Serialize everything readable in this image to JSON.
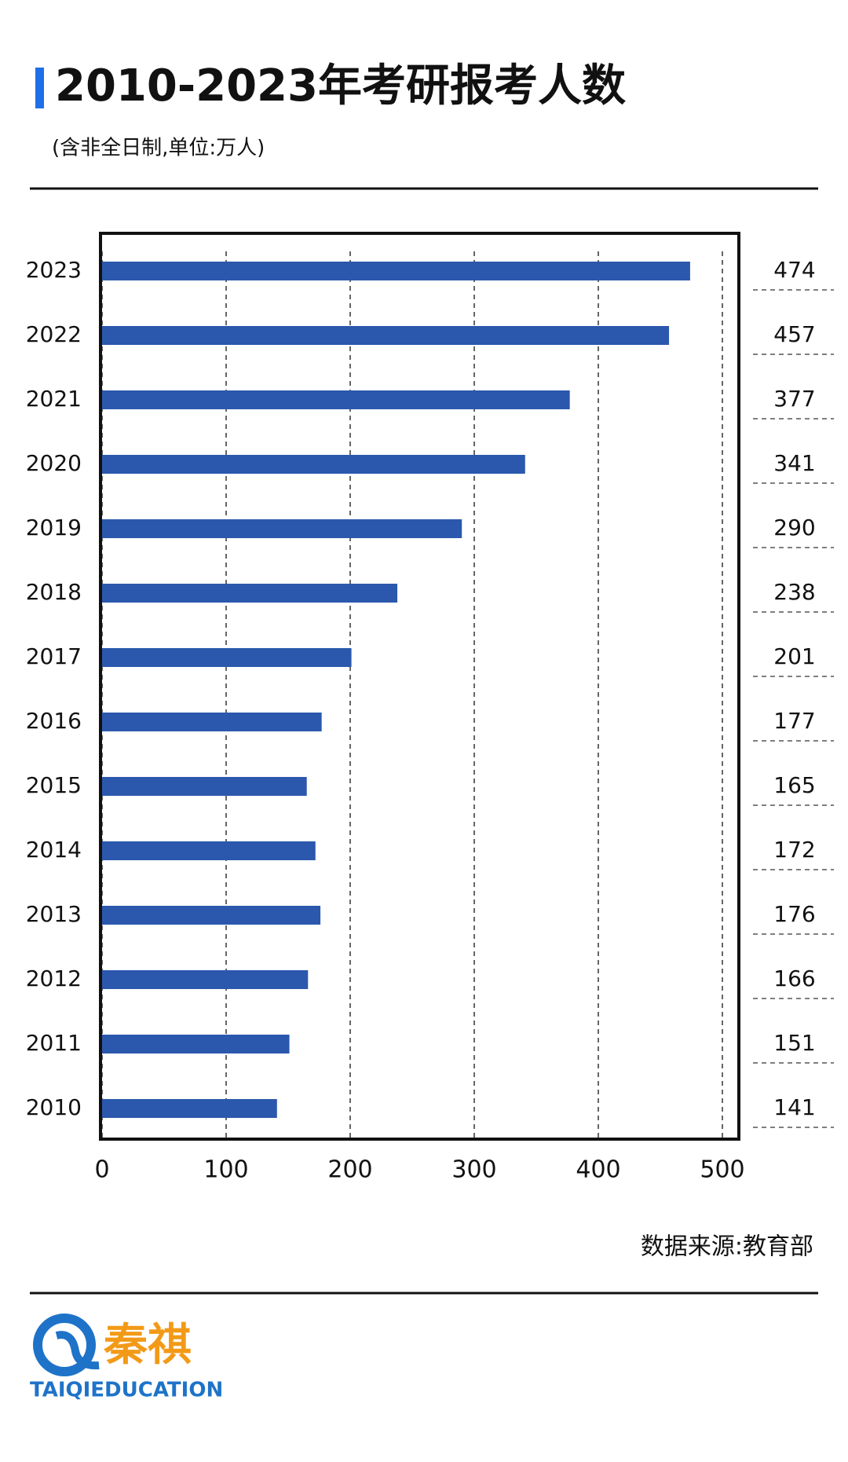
{
  "chart_data": {
    "type": "hbar",
    "title": "2010-2023年考研报考人数",
    "subtitle": "(含非全日制,单位:万人)",
    "source": "数据来源:教育部",
    "categories": [
      "2023",
      "2022",
      "2021",
      "2020",
      "2019",
      "2018",
      "2017",
      "2016",
      "2015",
      "2014",
      "2013",
      "2012",
      "2011",
      "2010"
    ],
    "values": [
      474,
      457,
      377,
      341,
      290,
      238,
      201,
      177,
      165,
      172,
      176,
      166,
      151,
      141
    ],
    "color": "#2b58ad",
    "xlim": [
      0,
      500
    ],
    "xticks": [
      0,
      100,
      200,
      300,
      400,
      500
    ],
    "grid": true
  },
  "logo": {
    "name": "秦祺",
    "text": "TAIQIEDUCATION"
  }
}
